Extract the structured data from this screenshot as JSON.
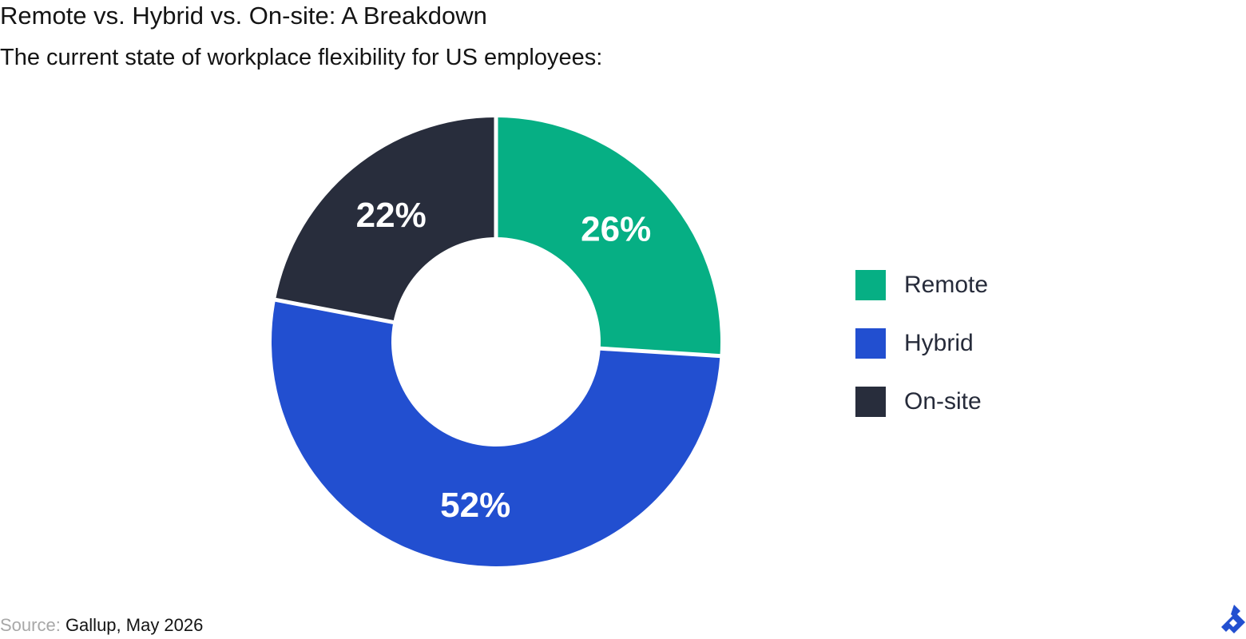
{
  "header": {
    "title": "Remote vs. Hybrid vs. On-site: A Breakdown",
    "subtitle": "The current state of workplace flexibility for US employees:"
  },
  "footer": {
    "source_prefix": "Source:",
    "source_text": " Gallup, May 2026",
    "logo_icon": "toptal-logo-icon"
  },
  "colors": {
    "Remote": "#06af84",
    "Hybrid": "#224fd0",
    "On-site": "#282d3c",
    "label_text": "#ffffff",
    "background": "#ffffff"
  },
  "chart_data": {
    "type": "pie",
    "donut": true,
    "categories": [
      "Remote",
      "Hybrid",
      "On-site"
    ],
    "values": [
      26,
      52,
      22
    ],
    "value_labels": [
      "26%",
      "52%",
      "22%"
    ],
    "legend_placement": "right"
  },
  "legend": {
    "items": [
      {
        "label": "Remote"
      },
      {
        "label": "Hybrid"
      },
      {
        "label": "On-site"
      }
    ]
  }
}
